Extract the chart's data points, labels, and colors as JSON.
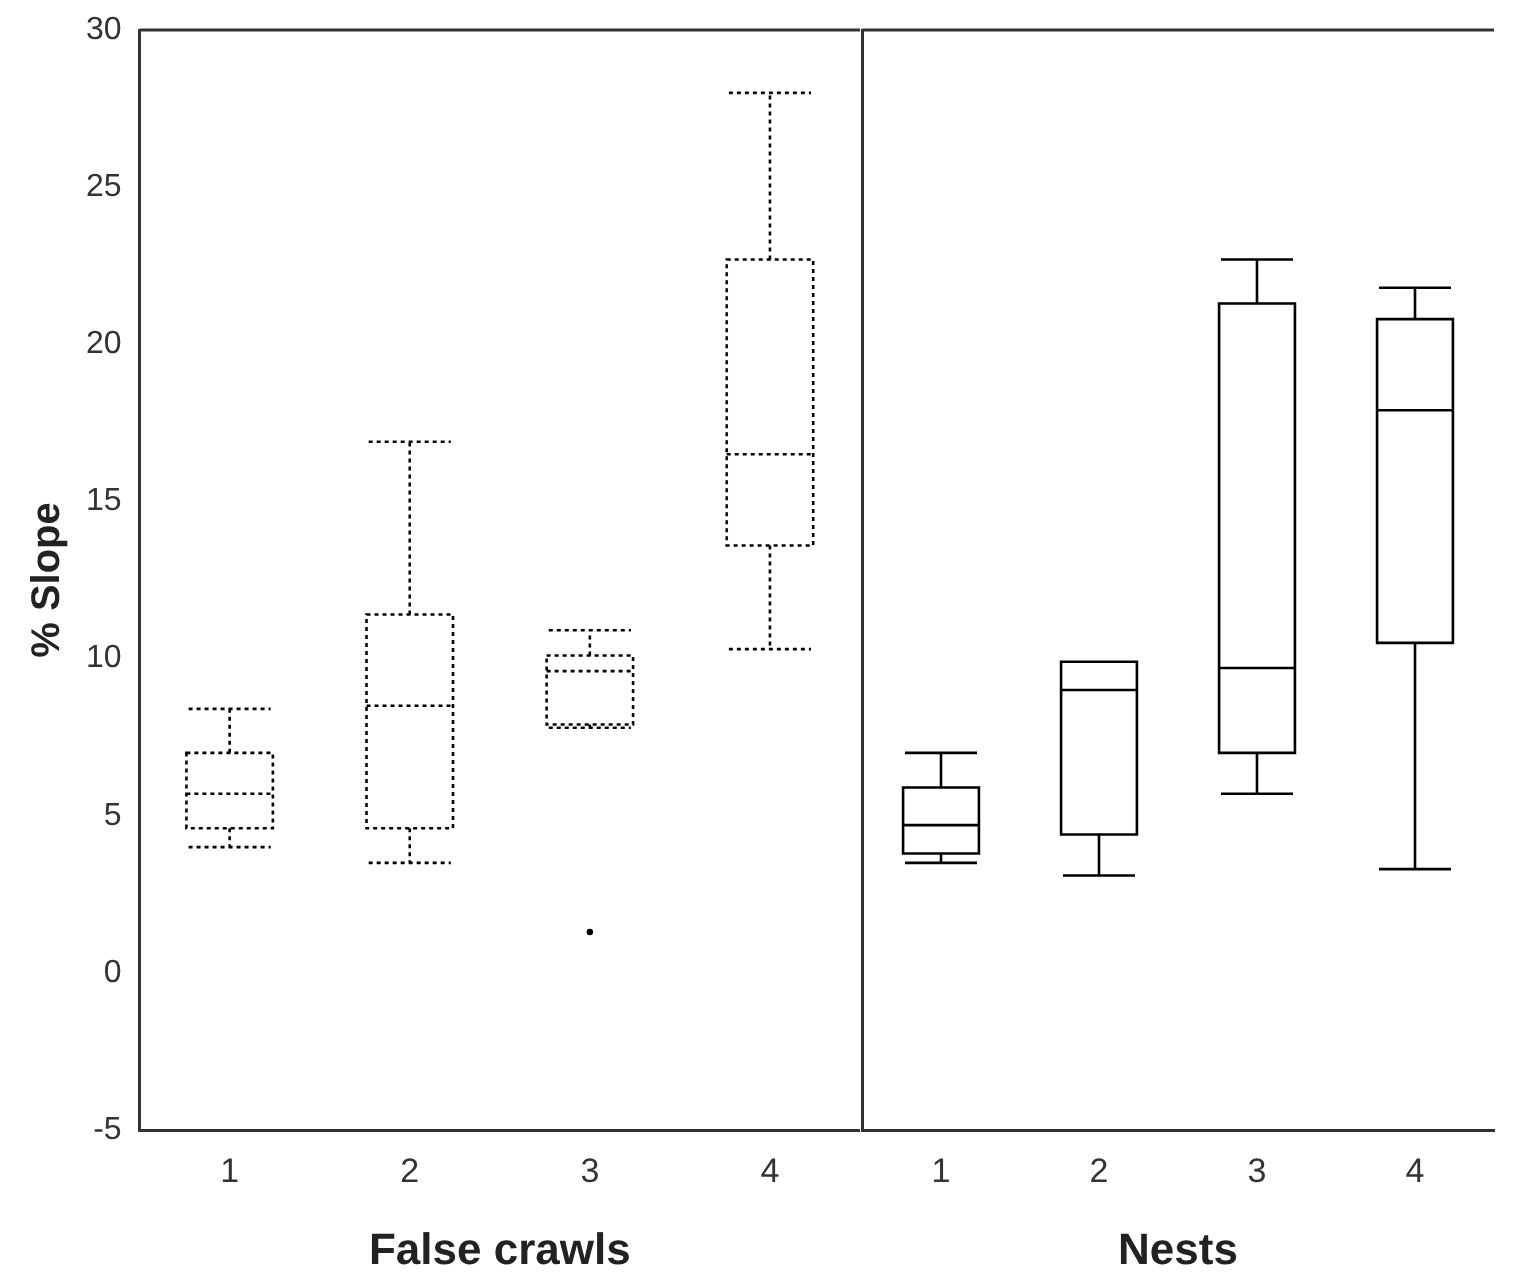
{
  "chart_data": [
    {
      "type": "box",
      "xlabel": "False crawls",
      "ylabel": "% Slope",
      "categories": [
        "1",
        "2",
        "3",
        "4"
      ],
      "color": "#000000",
      "line_style": "dotted",
      "ylim": [
        -5,
        30
      ],
      "yticks": [
        -5,
        0,
        5,
        10,
        15,
        20,
        25,
        30
      ],
      "boxes": [
        {
          "low": 4.0,
          "q1": 4.6,
          "median": 5.7,
          "q3": 7.0,
          "high": 8.4
        },
        {
          "low": 3.5,
          "q1": 4.6,
          "median": 8.5,
          "q3": 11.4,
          "high": 16.9
        },
        {
          "low": 7.8,
          "q1": 7.9,
          "median": 9.6,
          "q3": 10.1,
          "high": 10.9,
          "outliers": [
            1.3
          ]
        },
        {
          "low": 10.3,
          "q1": 13.6,
          "median": 16.5,
          "q3": 22.7,
          "high": 28.0
        }
      ]
    },
    {
      "type": "box",
      "xlabel": "Nests",
      "categories": [
        "1",
        "2",
        "3",
        "4"
      ],
      "color": "#000000",
      "line_style": "solid",
      "ylim": [
        -5,
        30
      ],
      "tick_labels": "x",
      "boxes": [
        {
          "low": 3.5,
          "q1": 3.8,
          "median": 4.7,
          "q3": 5.9,
          "high": 7.0
        },
        {
          "low": 3.1,
          "q1": 4.4,
          "median": 9.0,
          "q3": 9.9,
          "high": 9.9
        },
        {
          "low": 5.7,
          "q1": 7.0,
          "median": 9.7,
          "q3": 21.3,
          "high": 22.7
        },
        {
          "low": 3.3,
          "q1": 10.5,
          "median": 17.9,
          "q3": 20.8,
          "high": 21.8
        }
      ]
    }
  ]
}
